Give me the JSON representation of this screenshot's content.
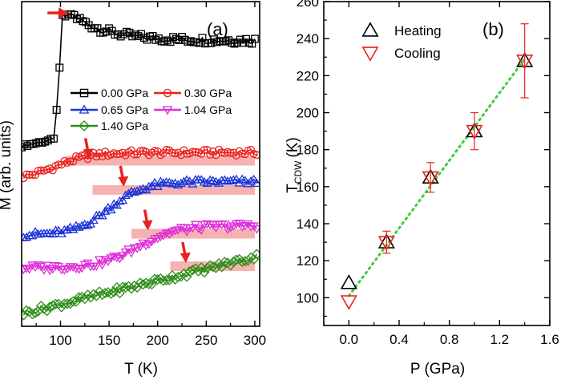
{
  "chart_data": [
    {
      "panel": "a",
      "type": "scatter",
      "panel_label": "(a)",
      "xlabel": "T (K)",
      "ylabel": "M (arb. units)",
      "xlim": [
        60,
        305
      ],
      "ylim": [
        0,
        100
      ],
      "x_ticks": [
        100,
        150,
        200,
        250,
        300
      ],
      "y_ticks_labeled": false,
      "series": [
        {
          "name": "0.00 GPa",
          "color": "#000000",
          "marker": "square",
          "x_start": 60,
          "x_end": 302,
          "step": 3,
          "shape": "step",
          "base": 55.5,
          "low_level": 58,
          "jump_t": 100,
          "peak": 96.5,
          "peak_t": 110,
          "tail_level": 88
        },
        {
          "name": "0.30 GPa",
          "color": "#e8231f",
          "marker": "circle",
          "x_start": 62,
          "x_end": 302,
          "step": 3,
          "shape": "sigmoid",
          "base": 45,
          "plateau": 53.5,
          "mid_t": 95,
          "width": 18,
          "noise": 0.9
        },
        {
          "name": "0.65 GPa",
          "color": "#1c35d6",
          "marker": "triangle-up",
          "x_start": 62,
          "x_end": 302,
          "step": 3,
          "shape": "sigmoid",
          "base": 28,
          "plateau": 44.5,
          "mid_t": 150,
          "width": 18,
          "noise": 0.9
        },
        {
          "name": "1.04 GPa",
          "color": "#de2fd8",
          "marker": "triangle-down",
          "x_start": 62,
          "x_end": 302,
          "step": 3,
          "shape": "sigmoid",
          "base": 18,
          "plateau": 31,
          "mid_t": 180,
          "width": 20,
          "noise": 1.0
        },
        {
          "name": "1.40 GPa",
          "color": "#2e8d1a",
          "marker": "diamond",
          "x_start": 62,
          "x_end": 302,
          "step": 3,
          "shape": "linear",
          "start_level": 4,
          "end_level": 21.5,
          "noise": 1.0
        }
      ],
      "transition_arrows": [
        {
          "series": "0.00 GPa",
          "t": 108,
          "m": 96.5,
          "direction": "right",
          "color": "#e8231f"
        },
        {
          "series": "0.30 GPa",
          "t": 129,
          "m": 51.5,
          "direction": "down",
          "color": "#e8231f"
        },
        {
          "series": "0.65 GPa",
          "t": 165,
          "m": 43,
          "direction": "down",
          "color": "#e8231f"
        },
        {
          "series": "1.04 GPa",
          "t": 190,
          "m": 29.5,
          "direction": "down",
          "color": "#e8231f"
        },
        {
          "series": "1.40 GPa",
          "t": 229,
          "m": 19.5,
          "direction": "down",
          "color": "#e8231f"
        }
      ],
      "shaded_bands": [
        {
          "t_start": 105,
          "t_end": 300,
          "m_center": 51,
          "color": "#f4a4a2"
        },
        {
          "t_start": 133,
          "t_end": 300,
          "m_center": 42,
          "color": "#f4a4a2"
        },
        {
          "t_start": 173,
          "t_end": 300,
          "m_center": 28.5,
          "color": "#f4a4a2"
        },
        {
          "t_start": 213,
          "t_end": 300,
          "m_center": 18.5,
          "color": "#f4a4a2"
        }
      ],
      "legend": {
        "placement": "center-right",
        "columns": 2,
        "entries": [
          "0.00 GPa",
          "0.30 GPa",
          "0.65 GPa",
          "1.04 GPa",
          "1.40 GPa"
        ]
      }
    },
    {
      "panel": "b",
      "type": "scatter",
      "panel_label": "(b)",
      "xlabel": "P (GPa)",
      "ylabel_main": "T",
      "ylabel_sub": "CDW",
      "ylabel_unit": "(K)",
      "xlim": [
        -0.2,
        1.6
      ],
      "ylim": [
        85,
        260
      ],
      "x_ticks": [
        0.0,
        0.4,
        0.8,
        1.2,
        1.6
      ],
      "x_tick_labels": [
        "0.0",
        "0.4",
        "0.8",
        "1.2",
        "1.6"
      ],
      "y_ticks": [
        100,
        120,
        140,
        160,
        180,
        200,
        220,
        240,
        260
      ],
      "series": [
        {
          "name": "Heating",
          "marker": "triangle-up",
          "color": "#000000",
          "x": [
            0.0,
            0.3,
            0.65,
            1.0,
            1.4
          ],
          "y": [
            108,
            130,
            165,
            190,
            228
          ],
          "yerr": [
            0,
            0,
            0,
            0,
            0
          ]
        },
        {
          "name": "Cooling",
          "marker": "triangle-down",
          "color": "#e8231f",
          "x": [
            0.0,
            0.3,
            0.65,
            1.0,
            1.4
          ],
          "y": [
            98,
            130,
            165,
            190,
            228
          ],
          "yerr": [
            0,
            6,
            8,
            10,
            20
          ]
        }
      ],
      "fit_line": {
        "x": [
          0.0,
          1.4
        ],
        "y": [
          101,
          229
        ],
        "color": "#44cc3a",
        "style": "dotted"
      },
      "legend": {
        "placement": "top-left",
        "entries": [
          "Heating",
          "Cooling"
        ]
      }
    }
  ]
}
